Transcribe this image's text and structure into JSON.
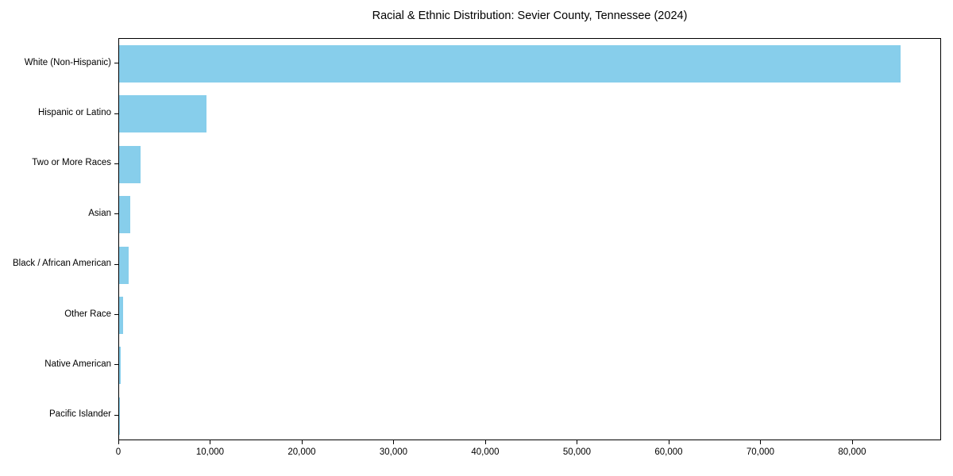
{
  "title": "Racial & Ethnic Distribution: Sevier County, Tennessee (2024)",
  "colors": {
    "bar": "#87CEEB",
    "spine": "#000000",
    "text": "#000000",
    "background": "#ffffff"
  },
  "chart_data": {
    "type": "bar",
    "orientation": "horizontal",
    "title": "Racial & Ethnic Distribution: Sevier County, Tennessee (2024)",
    "categories": [
      "White (Non-Hispanic)",
      "Hispanic or Latino",
      "Two or More Races",
      "Asian",
      "Black / African American",
      "Other Race",
      "Native American",
      "Pacific Islander"
    ],
    "values": [
      85400,
      9550,
      2340,
      1190,
      1010,
      415,
      140,
      30
    ],
    "xlabel": "",
    "ylabel": "",
    "xlim": [
      0,
      89700
    ],
    "x_ticks": [
      0,
      10000,
      20000,
      30000,
      40000,
      50000,
      60000,
      70000,
      80000
    ],
    "x_tick_labels": [
      "0",
      "10,000",
      "20,000",
      "30,000",
      "40,000",
      "50,000",
      "60,000",
      "70,000",
      "80,000"
    ],
    "grid": false,
    "legend": null,
    "bar_color": "#87CEEB"
  }
}
